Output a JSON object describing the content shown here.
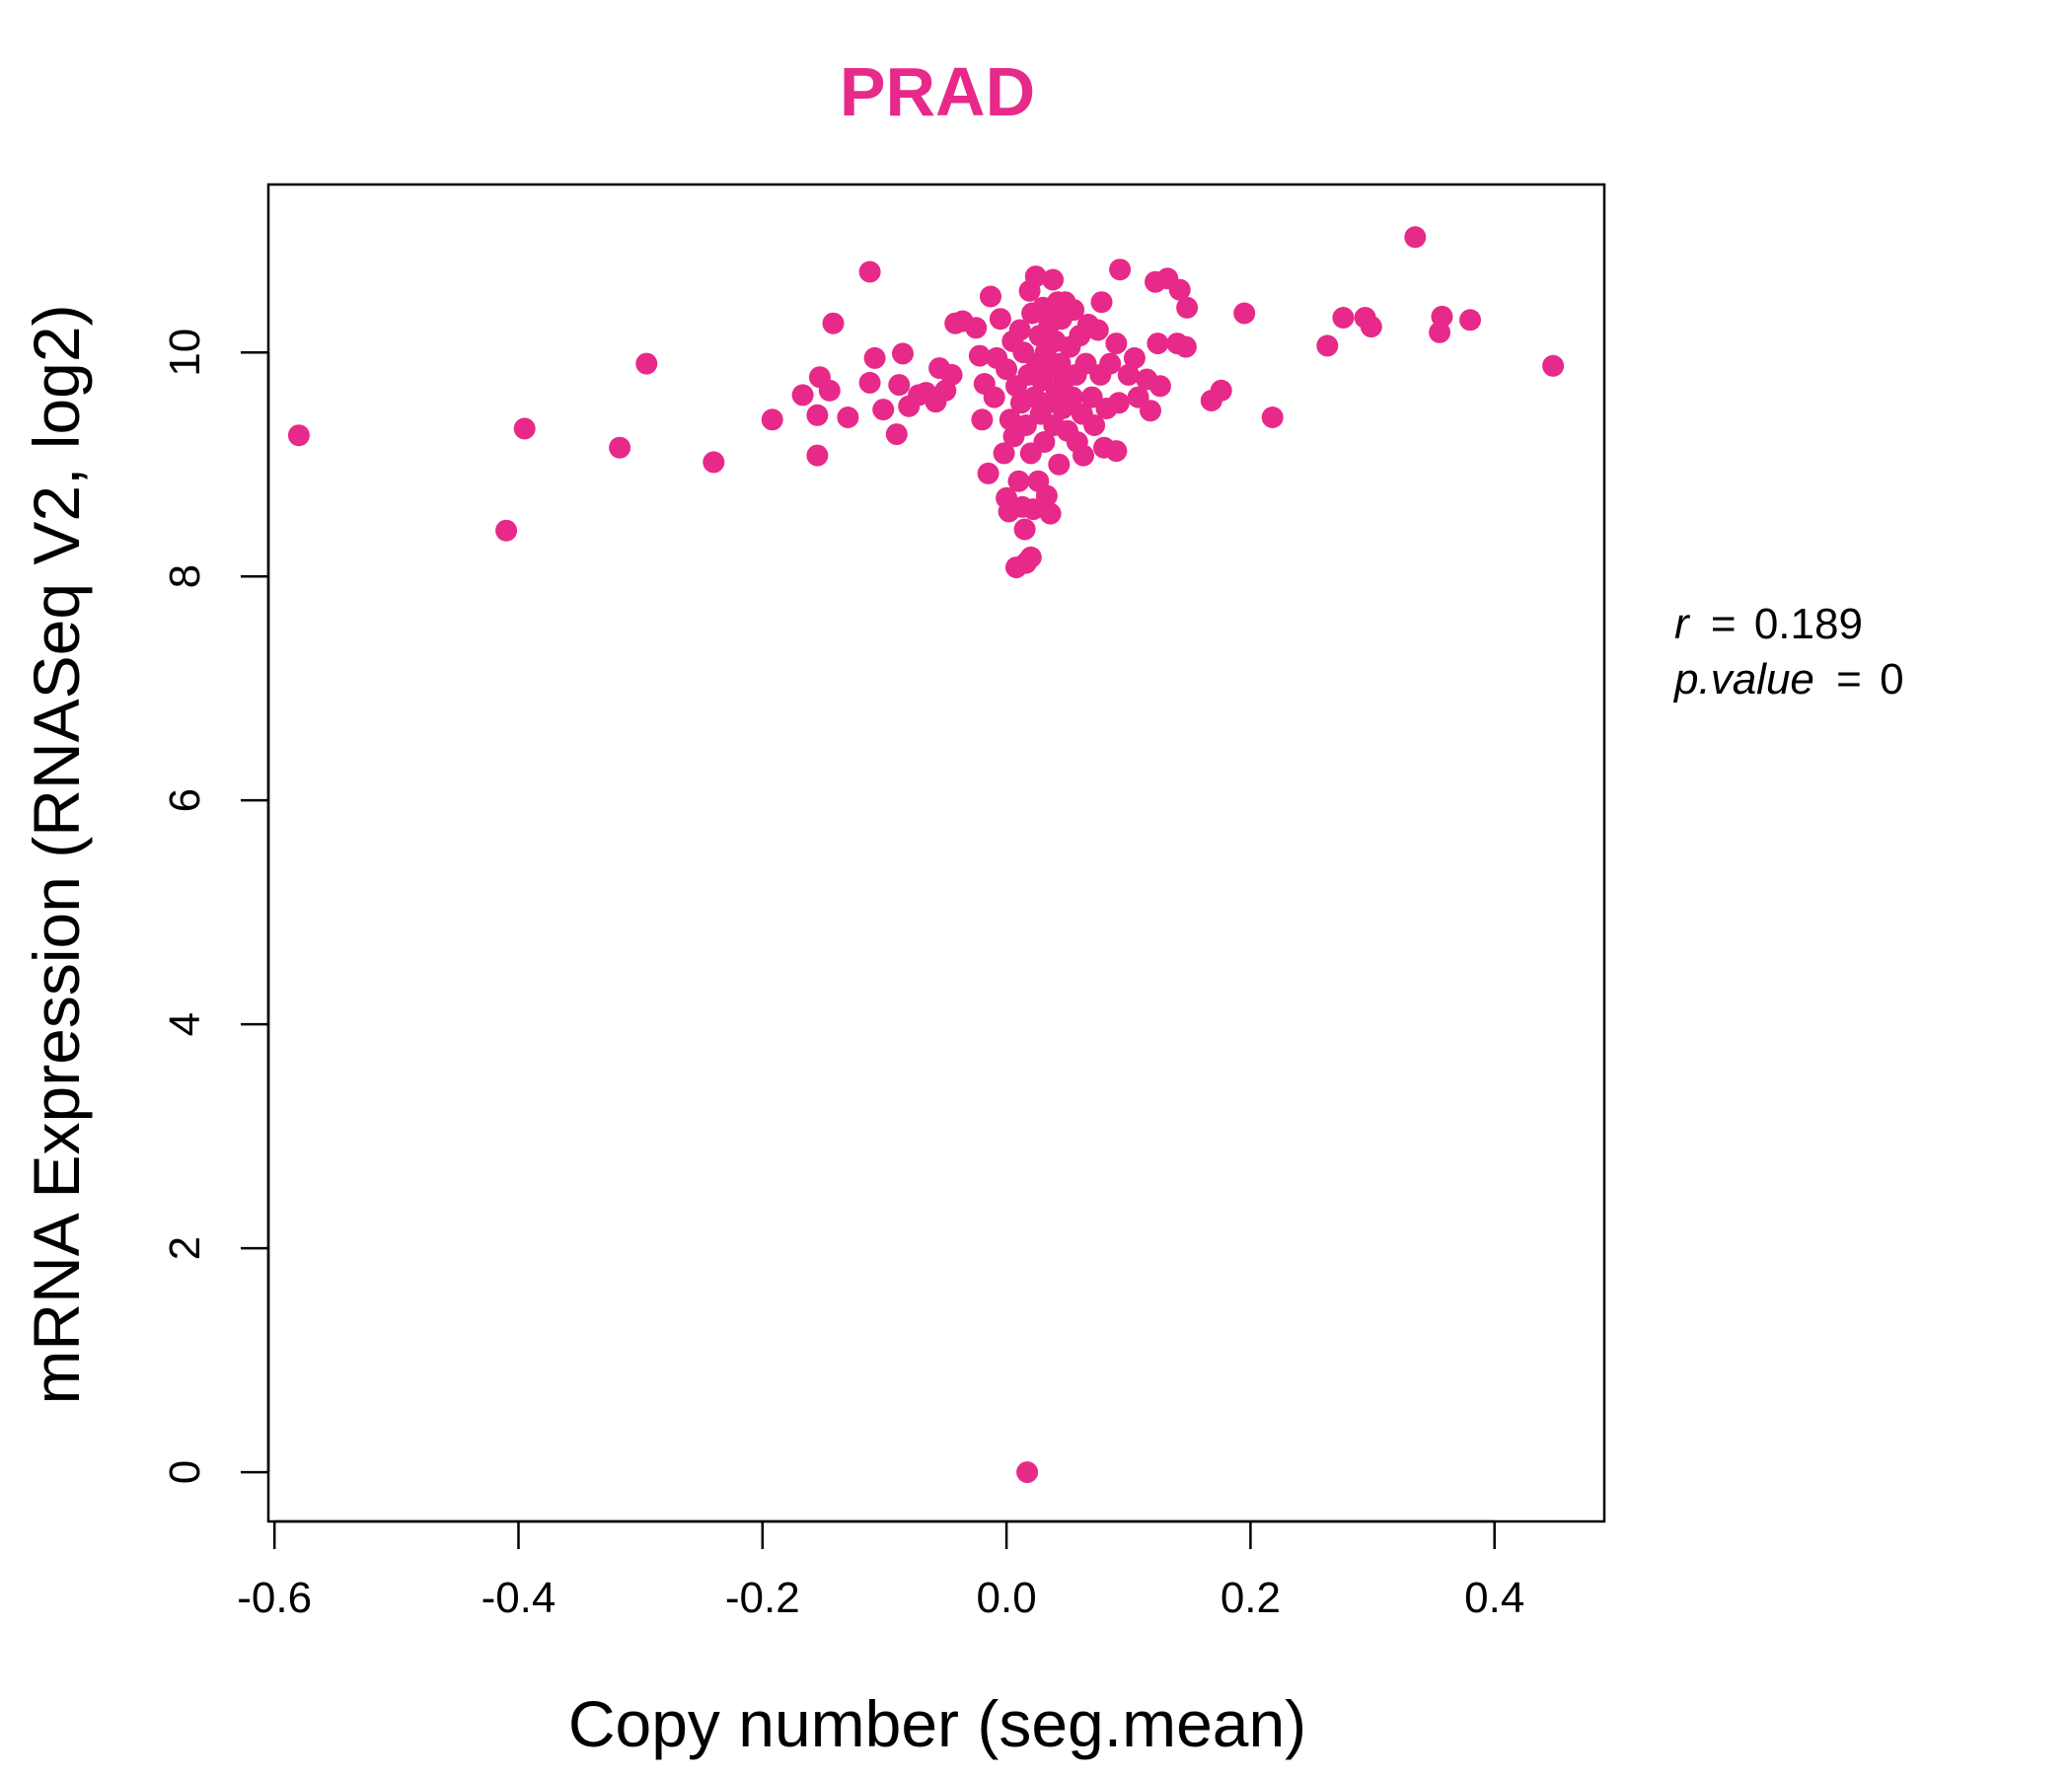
{
  "colors": {
    "accent": "#e7298a",
    "axis": "#000000"
  },
  "stats": {
    "r_label": "r",
    "r_value": "0.189",
    "p_label": "p.value",
    "p_value": "0",
    "equals": "="
  },
  "chart_data": {
    "type": "scatter",
    "title": "PRAD",
    "xlabel": "Copy number (seg.mean)",
    "ylabel": "mRNA Expression (RNASeq V2, log2)",
    "xlim": [
      -0.605,
      0.49
    ],
    "ylim": [
      -0.44,
      11.5
    ],
    "x_ticks": [
      -0.6,
      -0.4,
      -0.2,
      0.0,
      0.2,
      0.4
    ],
    "x_tick_labels": [
      "-0.6",
      "-0.4",
      "-0.2",
      "0.0",
      "0.2",
      "0.4"
    ],
    "y_ticks": [
      0,
      2,
      4,
      6,
      8,
      10
    ],
    "y_tick_labels": [
      "0",
      "2",
      "4",
      "6",
      "8",
      "10"
    ],
    "grid": false,
    "series": [
      {
        "color": "#e7298a",
        "points": [
          [
            -0.58,
            9.26
          ],
          [
            -0.41,
            8.41
          ],
          [
            -0.395,
            9.32
          ],
          [
            -0.317,
            9.15
          ],
          [
            -0.295,
            9.9
          ],
          [
            -0.24,
            9.02
          ],
          [
            -0.192,
            9.4
          ],
          [
            -0.167,
            9.62
          ],
          [
            -0.155,
            9.08
          ],
          [
            -0.155,
            9.44
          ],
          [
            -0.153,
            9.78
          ],
          [
            -0.145,
            9.66
          ],
          [
            -0.142,
            10.26
          ],
          [
            -0.13,
            9.42
          ],
          [
            -0.112,
            10.72
          ],
          [
            -0.112,
            9.73
          ],
          [
            -0.108,
            9.95
          ],
          [
            -0.101,
            9.49
          ],
          [
            -0.09,
            9.27
          ],
          [
            -0.088,
            9.71
          ],
          [
            -0.085,
            9.99
          ],
          [
            -0.08,
            9.52
          ],
          [
            -0.072,
            9.62
          ],
          [
            -0.066,
            9.64
          ],
          [
            -0.058,
            9.56
          ],
          [
            -0.055,
            9.86
          ],
          [
            -0.05,
            9.66
          ],
          [
            -0.045,
            9.8
          ],
          [
            -0.042,
            10.26
          ],
          [
            -0.036,
            10.28
          ],
          [
            -0.025,
            10.22
          ],
          [
            -0.022,
            9.97
          ],
          [
            -0.02,
            9.4
          ],
          [
            -0.018,
            9.72
          ],
          [
            -0.015,
            8.92
          ],
          [
            -0.013,
            10.5
          ],
          [
            -0.01,
            9.6
          ],
          [
            -0.008,
            9.95
          ],
          [
            -0.005,
            10.3
          ],
          [
            -0.002,
            9.1
          ],
          [
            0.0,
            8.7
          ],
          [
            0.0,
            9.85
          ],
          [
            0.002,
            8.58
          ],
          [
            0.003,
            9.4
          ],
          [
            0.005,
            10.1
          ],
          [
            0.006,
            9.25
          ],
          [
            0.008,
            8.08
          ],
          [
            0.008,
            9.7
          ],
          [
            0.01,
            8.85
          ],
          [
            0.011,
            10.2
          ],
          [
            0.012,
            9.55
          ],
          [
            0.013,
            8.62
          ],
          [
            0.014,
            10.0
          ],
          [
            0.015,
            8.42
          ],
          [
            0.016,
            8.12
          ],
          [
            0.016,
            9.35
          ],
          [
            0.017,
            0.0
          ],
          [
            0.018,
            9.8
          ],
          [
            0.019,
            10.55
          ],
          [
            0.02,
            8.17
          ],
          [
            0.02,
            9.1
          ],
          [
            0.021,
            10.35
          ],
          [
            0.022,
            8.6
          ],
          [
            0.023,
            9.6
          ],
          [
            0.024,
            10.68
          ],
          [
            0.025,
            9.9
          ],
          [
            0.026,
            8.85
          ],
          [
            0.027,
            10.15
          ],
          [
            0.028,
            9.45
          ],
          [
            0.029,
            9.75
          ],
          [
            0.03,
            10.4
          ],
          [
            0.031,
            9.2
          ],
          [
            0.032,
            10.0
          ],
          [
            0.033,
            8.72
          ],
          [
            0.034,
            9.55
          ],
          [
            0.035,
            10.25
          ],
          [
            0.036,
            8.56
          ],
          [
            0.037,
            9.85
          ],
          [
            0.038,
            10.65
          ],
          [
            0.039,
            9.35
          ],
          [
            0.04,
            10.1
          ],
          [
            0.041,
            9.65
          ],
          [
            0.042,
            10.45
          ],
          [
            0.043,
            9.0
          ],
          [
            0.044,
            9.9
          ],
          [
            0.045,
            10.3
          ],
          [
            0.046,
            9.5
          ],
          [
            0.047,
            9.75
          ],
          [
            0.048,
            10.45
          ],
          [
            0.05,
            9.3
          ],
          [
            0.052,
            10.05
          ],
          [
            0.054,
            9.6
          ],
          [
            0.055,
            10.38
          ],
          [
            0.057,
            9.8
          ],
          [
            0.058,
            9.2
          ],
          [
            0.06,
            10.15
          ],
          [
            0.062,
            9.45
          ],
          [
            0.063,
            9.08
          ],
          [
            0.065,
            9.9
          ],
          [
            0.067,
            10.25
          ],
          [
            0.07,
            9.6
          ],
          [
            0.072,
            9.35
          ],
          [
            0.075,
            10.2
          ],
          [
            0.077,
            9.8
          ],
          [
            0.078,
            10.45
          ],
          [
            0.08,
            9.15
          ],
          [
            0.082,
            9.5
          ],
          [
            0.085,
            9.9
          ],
          [
            0.09,
            9.12
          ],
          [
            0.09,
            10.08
          ],
          [
            0.092,
            9.55
          ],
          [
            0.093,
            10.74
          ],
          [
            0.1,
            9.8
          ],
          [
            0.105,
            9.95
          ],
          [
            0.108,
            9.6
          ],
          [
            0.115,
            9.76
          ],
          [
            0.118,
            9.48
          ],
          [
            0.122,
            10.63
          ],
          [
            0.124,
            10.08
          ],
          [
            0.126,
            9.7
          ],
          [
            0.132,
            10.66
          ],
          [
            0.14,
            10.08
          ],
          [
            0.142,
            10.56
          ],
          [
            0.147,
            10.05
          ],
          [
            0.148,
            10.4
          ],
          [
            0.168,
            9.57
          ],
          [
            0.176,
            9.66
          ],
          [
            0.195,
            10.35
          ],
          [
            0.218,
            9.42
          ],
          [
            0.263,
            10.06
          ],
          [
            0.276,
            10.31
          ],
          [
            0.294,
            10.31
          ],
          [
            0.299,
            10.23
          ],
          [
            0.335,
            11.03
          ],
          [
            0.355,
            10.18
          ],
          [
            0.357,
            10.32
          ],
          [
            0.38,
            10.29
          ],
          [
            0.448,
            9.88
          ]
        ]
      }
    ]
  }
}
